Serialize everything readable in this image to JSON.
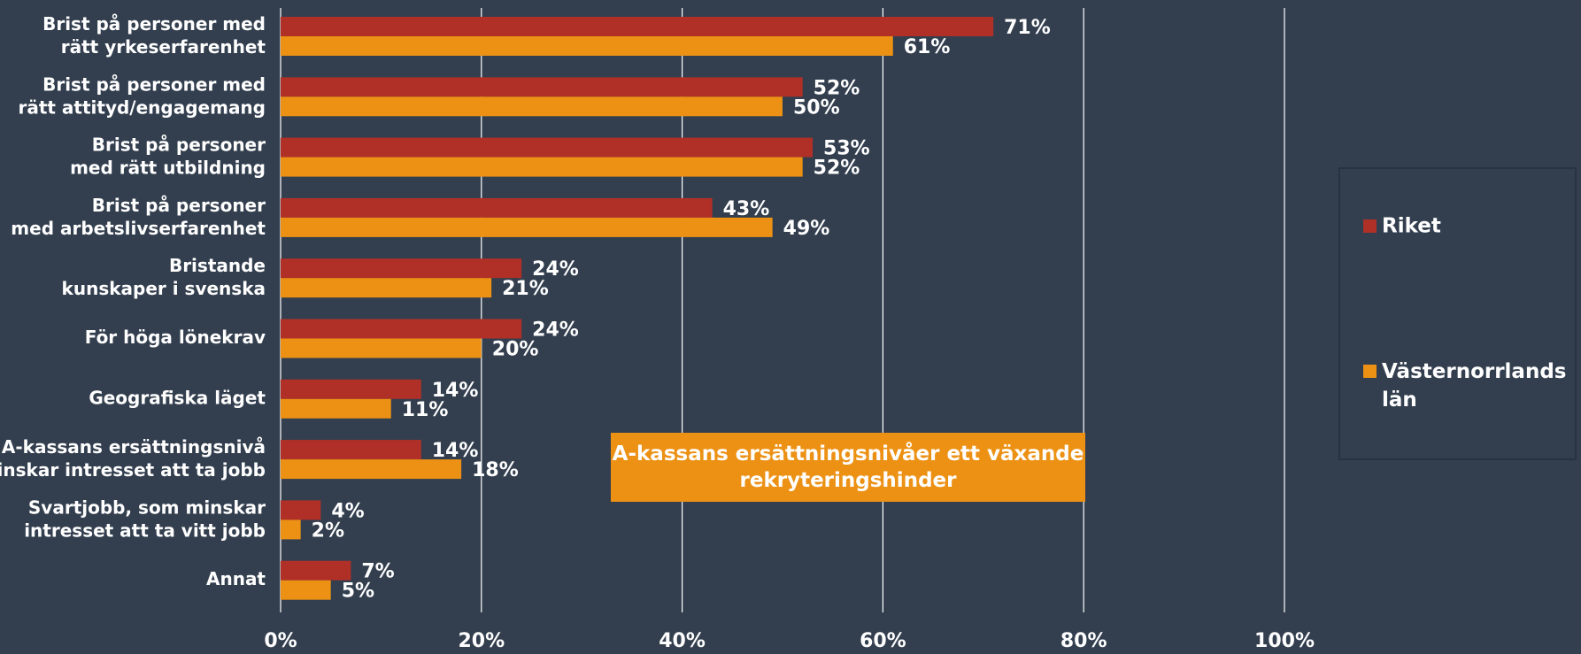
{
  "chart_data": {
    "type": "bar",
    "orientation": "horizontal",
    "categories": [
      "Brist på personer med\nrätt yrkeserfarenhet",
      "Brist på personer med\nrätt attityd/engagemang",
      "Brist på personer\nmed rätt utbildning",
      "Brist på personer\nmed arbetslivserfarenhet",
      "Bristande\nkunskaper i svenska",
      "För höga lönekrav",
      "Geografiska läget",
      "A-kassans ersättningsnivå\nminskar intresset att ta jobb",
      "Svartjobb, som minskar\nintresset att ta vitt jobb",
      "Annat"
    ],
    "series": [
      {
        "name": "Riket",
        "color": "#b03027",
        "values": [
          71,
          52,
          53,
          43,
          24,
          24,
          14,
          14,
          4,
          7
        ],
        "value_labels": [
          "71%",
          "52%",
          "53%",
          "43%",
          "24%",
          "24%",
          "14%",
          "14%",
          "4%",
          "7%"
        ]
      },
      {
        "name": "Västernorrlands\nlän",
        "color": "#ec9114",
        "values": [
          61,
          50,
          52,
          49,
          21,
          20,
          11,
          18,
          2,
          5
        ],
        "value_labels": [
          "61%",
          "50%",
          "52%",
          "49%",
          "21%",
          "20%",
          "11%",
          "18%",
          "2%",
          "5%"
        ]
      }
    ],
    "xlim": [
      0,
      100
    ],
    "xticks": [
      {
        "value": 0,
        "label": "0%"
      },
      {
        "value": 20,
        "label": "20%"
      },
      {
        "value": 40,
        "label": "40%"
      },
      {
        "value": 60,
        "label": "60%"
      },
      {
        "value": 80,
        "label": "80%"
      },
      {
        "value": 100,
        "label": "100%"
      }
    ],
    "grid": true,
    "legend": "right",
    "annotation": "A-kassans ersättningsnivåer ett växande\nrekryteringshinder"
  }
}
